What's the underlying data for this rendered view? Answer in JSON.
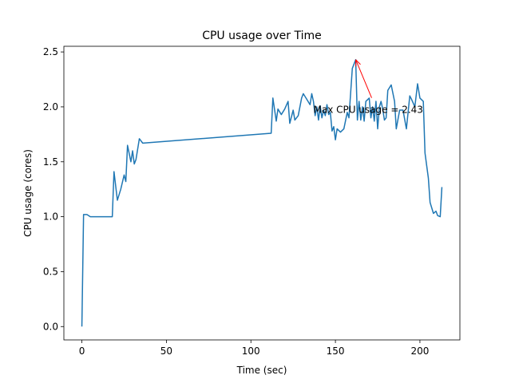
{
  "chart_data": {
    "type": "line",
    "title": "CPU usage over Time",
    "xlabel": "Time (sec)",
    "ylabel": "CPU usage (cores)",
    "xlim": [
      -10.65,
      223.65
    ],
    "ylim": [
      -0.1215,
      2.5515
    ],
    "xticks": [
      0,
      50,
      100,
      150,
      200
    ],
    "yticks": [
      {
        "value": 0,
        "label": "0.0"
      },
      {
        "value": 0.5,
        "label": "0.5"
      },
      {
        "value": 1,
        "label": "1.0"
      },
      {
        "value": 1.5,
        "label": "1.5"
      },
      {
        "value": 2,
        "label": "2.0"
      },
      {
        "value": 2.5,
        "label": "2.5"
      }
    ],
    "grid": false,
    "series": [
      {
        "name": "CPU usage",
        "color": "#1f77b4",
        "x": [
          0,
          1,
          3,
          5,
          10,
          18,
          19,
          21,
          23,
          25,
          26,
          27,
          29,
          30,
          31,
          32,
          34,
          36,
          112,
          113,
          115,
          116,
          118,
          120,
          122,
          123,
          125,
          126,
          128,
          130,
          131,
          133,
          135,
          136,
          137,
          138,
          139,
          140,
          141,
          142,
          143,
          144,
          145,
          146,
          147,
          148,
          149,
          150,
          151,
          153,
          155,
          157,
          158,
          160,
          162,
          163,
          164,
          165,
          166,
          167,
          168,
          170,
          171,
          172,
          173,
          174,
          175,
          176,
          177,
          178,
          179,
          180,
          181,
          183,
          185,
          186,
          188,
          190,
          192,
          194,
          195,
          197,
          198.6,
          200,
          202,
          203,
          205,
          206,
          208,
          209.5,
          210.5,
          212,
          213
        ],
        "values": [
          0,
          1.02,
          1.02,
          1.0,
          1.0,
          1.0,
          1.41,
          1.15,
          1.25,
          1.38,
          1.32,
          1.65,
          1.5,
          1.6,
          1.48,
          1.52,
          1.71,
          1.67,
          1.76,
          2.08,
          1.87,
          1.98,
          1.93,
          1.98,
          2.05,
          1.85,
          1.97,
          1.88,
          1.92,
          2.08,
          2.12,
          2.07,
          2.02,
          2.12,
          2.05,
          1.92,
          2.0,
          1.88,
          2.01,
          1.9,
          1.97,
          1.92,
          2.02,
          1.93,
          1.95,
          1.78,
          1.82,
          1.7,
          1.8,
          1.77,
          1.8,
          1.95,
          1.9,
          2.35,
          2.43,
          1.88,
          2.05,
          1.88,
          2.0,
          1.87,
          2.05,
          2.08,
          1.9,
          2.0,
          1.87,
          2.05,
          1.8,
          2.0,
          2.05,
          1.98,
          1.88,
          1.9,
          2.15,
          2.2,
          2.05,
          1.8,
          1.97,
          1.97,
          1.8,
          2.1,
          2.07,
          2.0,
          2.21,
          2.08,
          2.05,
          1.58,
          1.35,
          1.13,
          1.03,
          1.05,
          1.01,
          1.0,
          1.27
        ]
      }
    ],
    "annotation": {
      "text": "Max CPU usage = 2.43",
      "x": 162,
      "y": 2.43,
      "color": "#ff0000"
    }
  }
}
